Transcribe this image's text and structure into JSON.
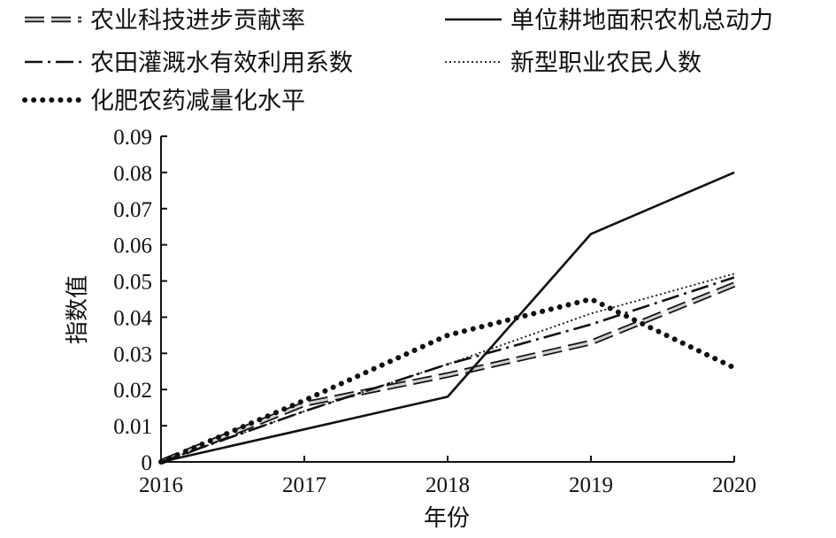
{
  "chart_data": {
    "type": "line",
    "xlabel": "年份",
    "ylabel": "指数值",
    "categories": [
      "2016",
      "2017",
      "2018",
      "2019",
      "2020"
    ],
    "ylim": [
      0,
      0.09
    ],
    "yticks": [
      "0",
      "0.01",
      "0.02",
      "0.03",
      "0.04",
      "0.05",
      "0.06",
      "0.07",
      "0.08",
      "0.09"
    ],
    "grid": false,
    "legend_position": "top",
    "series": [
      {
        "name": "农业科技进步贡献率",
        "style": "dashed-hollow",
        "color": "#111111",
        "values": [
          0,
          0.016,
          0.024,
          0.033,
          0.049
        ]
      },
      {
        "name": "单位耕地面积农机总动力",
        "style": "solid",
        "color": "#111111",
        "values": [
          0,
          0.009,
          0.018,
          0.063,
          0.08
        ]
      },
      {
        "name": "农田灌溉水有效利用系数",
        "style": "dash-dot",
        "color": "#111111",
        "values": [
          0,
          0.014,
          0.027,
          0.038,
          0.051
        ]
      },
      {
        "name": "新型职业农民人数",
        "style": "dotted-fine",
        "color": "#111111",
        "values": [
          0,
          0.014,
          0.027,
          0.041,
          0.052
        ]
      },
      {
        "name": "化肥农药减量化水平",
        "style": "dotted-bold",
        "color": "#111111",
        "values": [
          0,
          0.017,
          0.035,
          0.045,
          0.026
        ]
      }
    ]
  }
}
